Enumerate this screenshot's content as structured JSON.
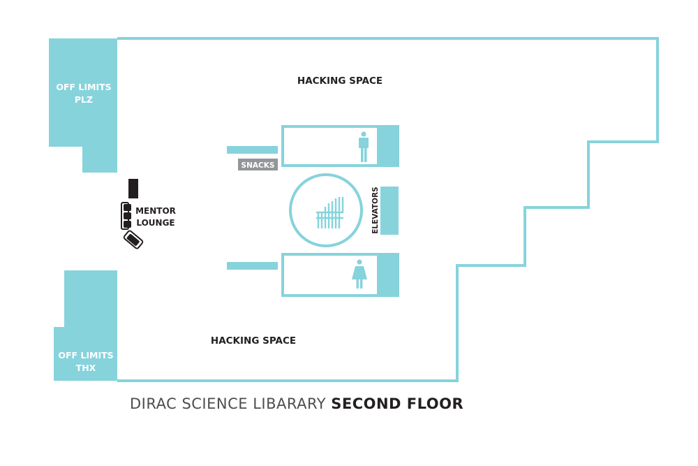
{
  "colors": {
    "teal": "#86d3dc",
    "dark": "#231f20",
    "snacks_gray": "#939598",
    "caption_gray": "#4d4d4f"
  },
  "map": {
    "hacking_space_top": "HACKING SPACE",
    "hacking_space_bottom": "HACKING SPACE",
    "off_limits_top": {
      "line1": "OFF LIMITS",
      "line2": "PLZ"
    },
    "off_limits_bottom": {
      "line1": "OFF LIMITS",
      "line2": "THX"
    },
    "mentor_lounge": {
      "line1": "MENTOR",
      "line2": "LOUNGE"
    },
    "snacks": "SNACKS",
    "elevators": "ELEVATORS",
    "restroom_men_icon": "man-icon",
    "restroom_women_icon": "woman-icon",
    "stairs_icon": "stairs-icon"
  },
  "caption": {
    "light": "DIRAC SCIENCE LIBARARY ",
    "bold": "SECOND FLOOR"
  }
}
